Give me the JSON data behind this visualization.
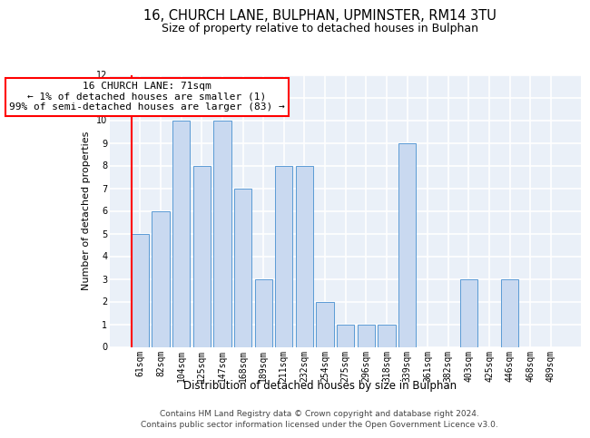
{
  "title1": "16, CHURCH LANE, BULPHAN, UPMINSTER, RM14 3TU",
  "title2": "Size of property relative to detached houses in Bulphan",
  "xlabel": "Distribution of detached houses by size in Bulphan",
  "ylabel": "Number of detached properties",
  "categories": [
    "61sqm",
    "82sqm",
    "104sqm",
    "125sqm",
    "147sqm",
    "168sqm",
    "189sqm",
    "211sqm",
    "232sqm",
    "254sqm",
    "275sqm",
    "296sqm",
    "318sqm",
    "339sqm",
    "361sqm",
    "382sqm",
    "403sqm",
    "425sqm",
    "446sqm",
    "468sqm",
    "489sqm"
  ],
  "values": [
    5,
    6,
    10,
    8,
    10,
    7,
    3,
    8,
    8,
    2,
    1,
    1,
    1,
    9,
    0,
    0,
    3,
    0,
    3,
    0,
    0
  ],
  "bar_color": "#c9d9f0",
  "bar_edge_color": "#5b9bd5",
  "annotation_box_text": "16 CHURCH LANE: 71sqm\n← 1% of detached houses are smaller (1)\n99% of semi-detached houses are larger (83) →",
  "footer1": "Contains HM Land Registry data © Crown copyright and database right 2024.",
  "footer2": "Contains public sector information licensed under the Open Government Licence v3.0.",
  "ylim": [
    0,
    12
  ],
  "yticks": [
    0,
    1,
    2,
    3,
    4,
    5,
    6,
    7,
    8,
    9,
    10,
    11,
    12
  ],
  "background_color": "#eaf0f8",
  "grid_color": "#ffffff",
  "title1_fontsize": 10.5,
  "title2_fontsize": 9,
  "xlabel_fontsize": 8.5,
  "ylabel_fontsize": 8,
  "tick_fontsize": 7,
  "annotation_fontsize": 8,
  "footer_fontsize": 6.5
}
